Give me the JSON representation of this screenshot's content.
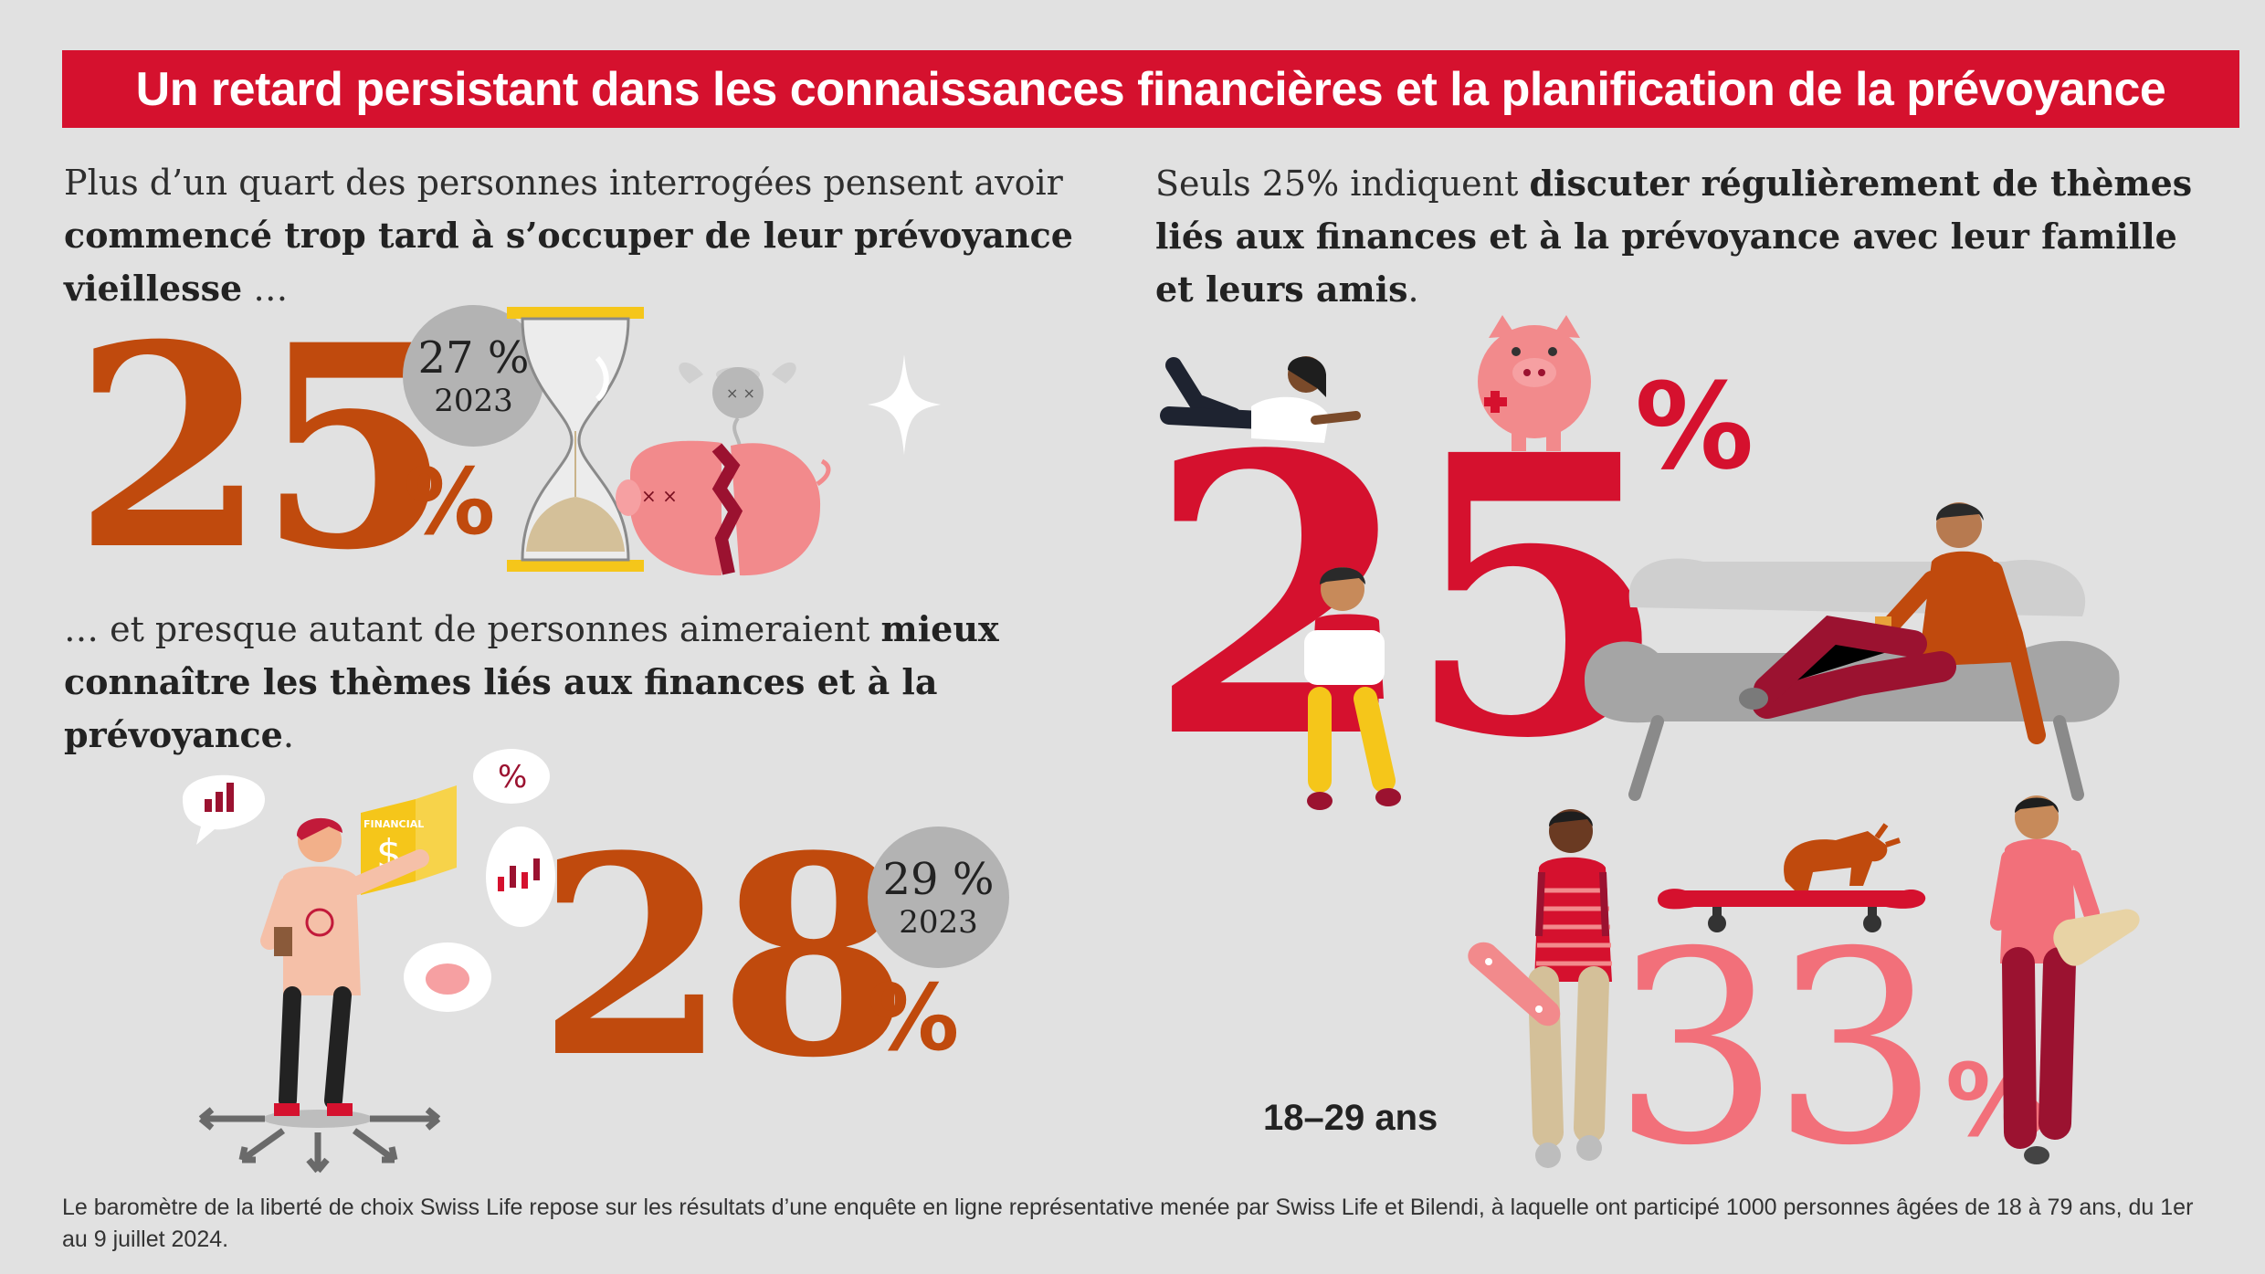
{
  "title": "Un retard persistant dans les connaissances financières et la planification de la prévoyance",
  "left_top": {
    "text_a": "Plus d’un quart des personnes interrogées pensent avoir ",
    "text_b": "commencé trop tard à s’occuper de leur prévoyance vieillesse",
    "text_c": " …",
    "value": "25",
    "percent": "%",
    "previous_value": "27 %",
    "previous_year": "2023"
  },
  "left_bottom": {
    "text_a": "… et presque autant de personnes aimeraient ",
    "text_b": "mieux connaître les thèmes liés aux finances et à la prévoyance",
    "text_c": ".",
    "value": "28",
    "percent": "%",
    "previous_value": "29 %",
    "previous_year": "2023",
    "book_label": "FINANCIAL",
    "bubble_percent": "%"
  },
  "right": {
    "text_a": "Seuls 25% indiquent ",
    "text_b": "discuter régulièrement de thèmes liés aux finances et à la prévoyance avec leur famille et leurs amis",
    "text_c": ".",
    "value": "25",
    "percent": "%",
    "young_value": "33",
    "young_percent": "%",
    "young_label": "18–29 ans"
  },
  "footnote": "Le baromètre de la liberté de choix Swiss Life repose sur les résultats d’une enquête en ligne représentative menée par Swiss Life et Bilendi, à laquelle ont participé 1000 personnes âgées de 18 à 79 ans, du 1er au 9 juillet 2024.",
  "colors": {
    "background": "#e1e1e1",
    "banner": "#d5112e",
    "orange": "#c04a0d",
    "red": "#d5112e",
    "salmon": "#f2707a",
    "circle": "#b3b3b3"
  }
}
